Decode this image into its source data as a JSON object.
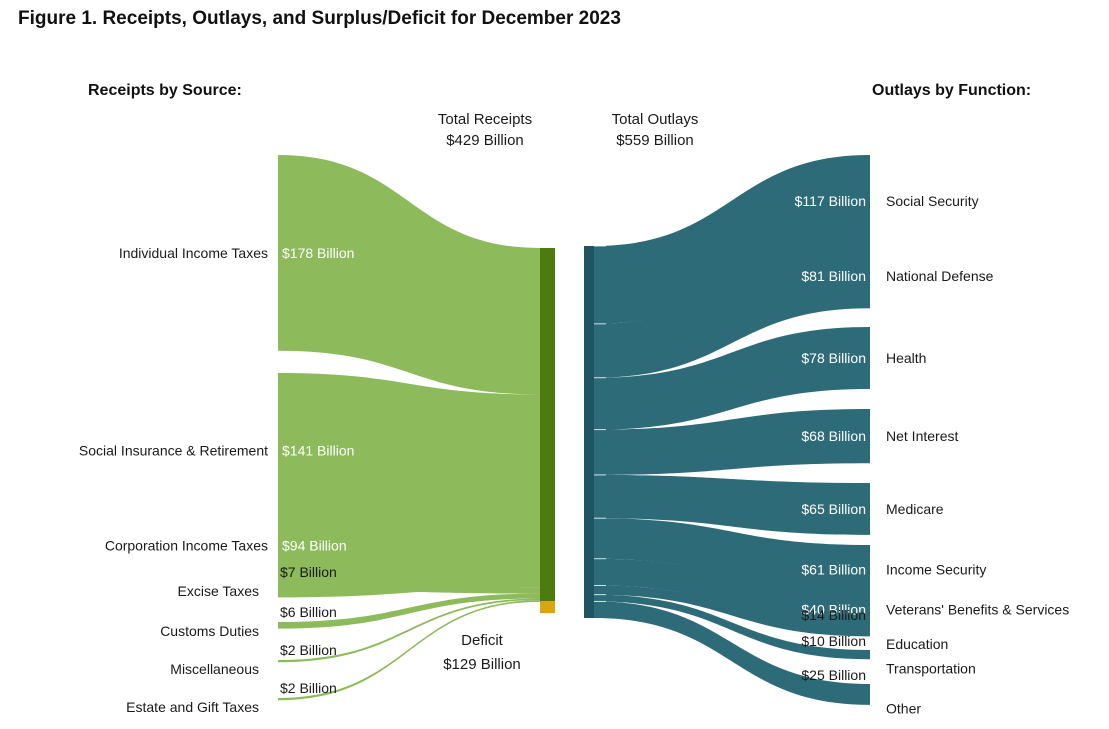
{
  "title": "Figure 1. Receipts, Outlays, and Surplus/Deficit for December 2023",
  "colors": {
    "receipts": "#8dba5a",
    "receipts_bar": "#4f7a10",
    "outlays": "#2e6b79",
    "outlays_bar": "#1f5561",
    "deficit": "#d9a514"
  },
  "chart_data": {
    "type": "sankey",
    "receipts_heading": "Receipts by Source:",
    "outlays_heading": "Outlays by Function:",
    "total_receipts": {
      "label": "Total Receipts",
      "value_label": "$429 Billion",
      "value": 429
    },
    "total_outlays": {
      "label": "Total Outlays",
      "value_label": "$559 Billion",
      "value": 559
    },
    "deficit": {
      "label": "Deficit",
      "value_label": "$129 Billion",
      "value": 129
    },
    "receipts": [
      {
        "name": "Individual Income Taxes",
        "value": 178,
        "value_label": "$178 Billion"
      },
      {
        "name": "Social Insurance & Retirement",
        "value": 141,
        "value_label": "$141 Billion"
      },
      {
        "name": "Corporation Income Taxes",
        "value": 94,
        "value_label": "$94 Billion"
      },
      {
        "name": "Excise Taxes",
        "value": 7,
        "value_label": "$7 Billion"
      },
      {
        "name": "Customs Duties",
        "value": 6,
        "value_label": "$6 Billion"
      },
      {
        "name": "Miscellaneous",
        "value": 2,
        "value_label": "$2 Billion"
      },
      {
        "name": "Estate and Gift Taxes",
        "value": 2,
        "value_label": "$2 Billion"
      }
    ],
    "outlays": [
      {
        "name": "Social Security",
        "value": 117,
        "value_label": "$117 Billion"
      },
      {
        "name": "National Defense",
        "value": 81,
        "value_label": "$81 Billion"
      },
      {
        "name": "Health",
        "value": 78,
        "value_label": "$78 Billion"
      },
      {
        "name": "Net Interest",
        "value": 68,
        "value_label": "$68 Billion"
      },
      {
        "name": "Medicare",
        "value": 65,
        "value_label": "$65 Billion"
      },
      {
        "name": "Income Security",
        "value": 61,
        "value_label": "$61 Billion"
      },
      {
        "name": "Veterans' Benefits & Services",
        "value": 40,
        "value_label": "$40 Billion"
      },
      {
        "name": "Education",
        "value": 14,
        "value_label": "$14 Billion"
      },
      {
        "name": "Transportation",
        "value": 10,
        "value_label": "$10 Billion"
      },
      {
        "name": "Other",
        "value": 25,
        "value_label": "$25 Billion"
      }
    ]
  }
}
